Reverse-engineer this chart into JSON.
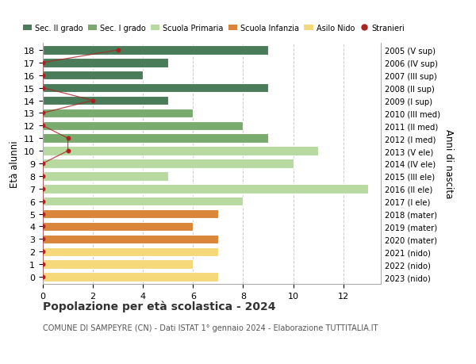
{
  "ages": [
    18,
    17,
    16,
    15,
    14,
    13,
    12,
    11,
    10,
    9,
    8,
    7,
    6,
    5,
    4,
    3,
    2,
    1,
    0
  ],
  "years": [
    "2005 (V sup)",
    "2006 (IV sup)",
    "2007 (III sup)",
    "2008 (II sup)",
    "2009 (I sup)",
    "2010 (III med)",
    "2011 (II med)",
    "2012 (I med)",
    "2013 (V ele)",
    "2014 (IV ele)",
    "2015 (III ele)",
    "2016 (II ele)",
    "2017 (I ele)",
    "2018 (mater)",
    "2019 (mater)",
    "2020 (mater)",
    "2021 (nido)",
    "2022 (nido)",
    "2023 (nido)"
  ],
  "bar_values": [
    9,
    5,
    4,
    9,
    5,
    6,
    8,
    9,
    11,
    10,
    5,
    13,
    8,
    7,
    6,
    7,
    7,
    6,
    7
  ],
  "bar_colors": [
    "#4a7c59",
    "#4a7c59",
    "#4a7c59",
    "#4a7c59",
    "#4a7c59",
    "#7aab6e",
    "#7aab6e",
    "#7aab6e",
    "#b8d9a0",
    "#b8d9a0",
    "#b8d9a0",
    "#b8d9a0",
    "#b8d9a0",
    "#d9863a",
    "#d9863a",
    "#d9863a",
    "#f5d87a",
    "#f5d87a",
    "#f5d87a"
  ],
  "stranieri_x": [
    3.0,
    0.0,
    0.0,
    0.0,
    2.0,
    0.0,
    0.0,
    1.0,
    1.0,
    0.0,
    0.0,
    0.0,
    0.0,
    0.0,
    0.0,
    0.0,
    0.0,
    0.0,
    0.0
  ],
  "stranieri_color": "#aa2222",
  "legend_labels": [
    "Sec. II grado",
    "Sec. I grado",
    "Scuola Primaria",
    "Scuola Infanzia",
    "Asilo Nido",
    "Stranieri"
  ],
  "legend_colors": [
    "#4a7c59",
    "#7aab6e",
    "#b8d9a0",
    "#d9863a",
    "#f5d87a",
    "#aa2222"
  ],
  "ylabel": "Età alunni",
  "ylabel_right": "Anni di nascita",
  "title": "Popolazione per età scolastica - 2024",
  "subtitle": "COMUNE DI SAMPEYRE (CN) - Dati ISTAT 1° gennaio 2024 - Elaborazione TUTTITALIA.IT",
  "xlim": [
    0,
    13.5
  ],
  "xticks": [
    0,
    2,
    4,
    6,
    8,
    10,
    12
  ],
  "background_color": "#ffffff",
  "bar_height": 0.72,
  "grid_color": "#cccccc",
  "spine_color": "#aaaaaa"
}
